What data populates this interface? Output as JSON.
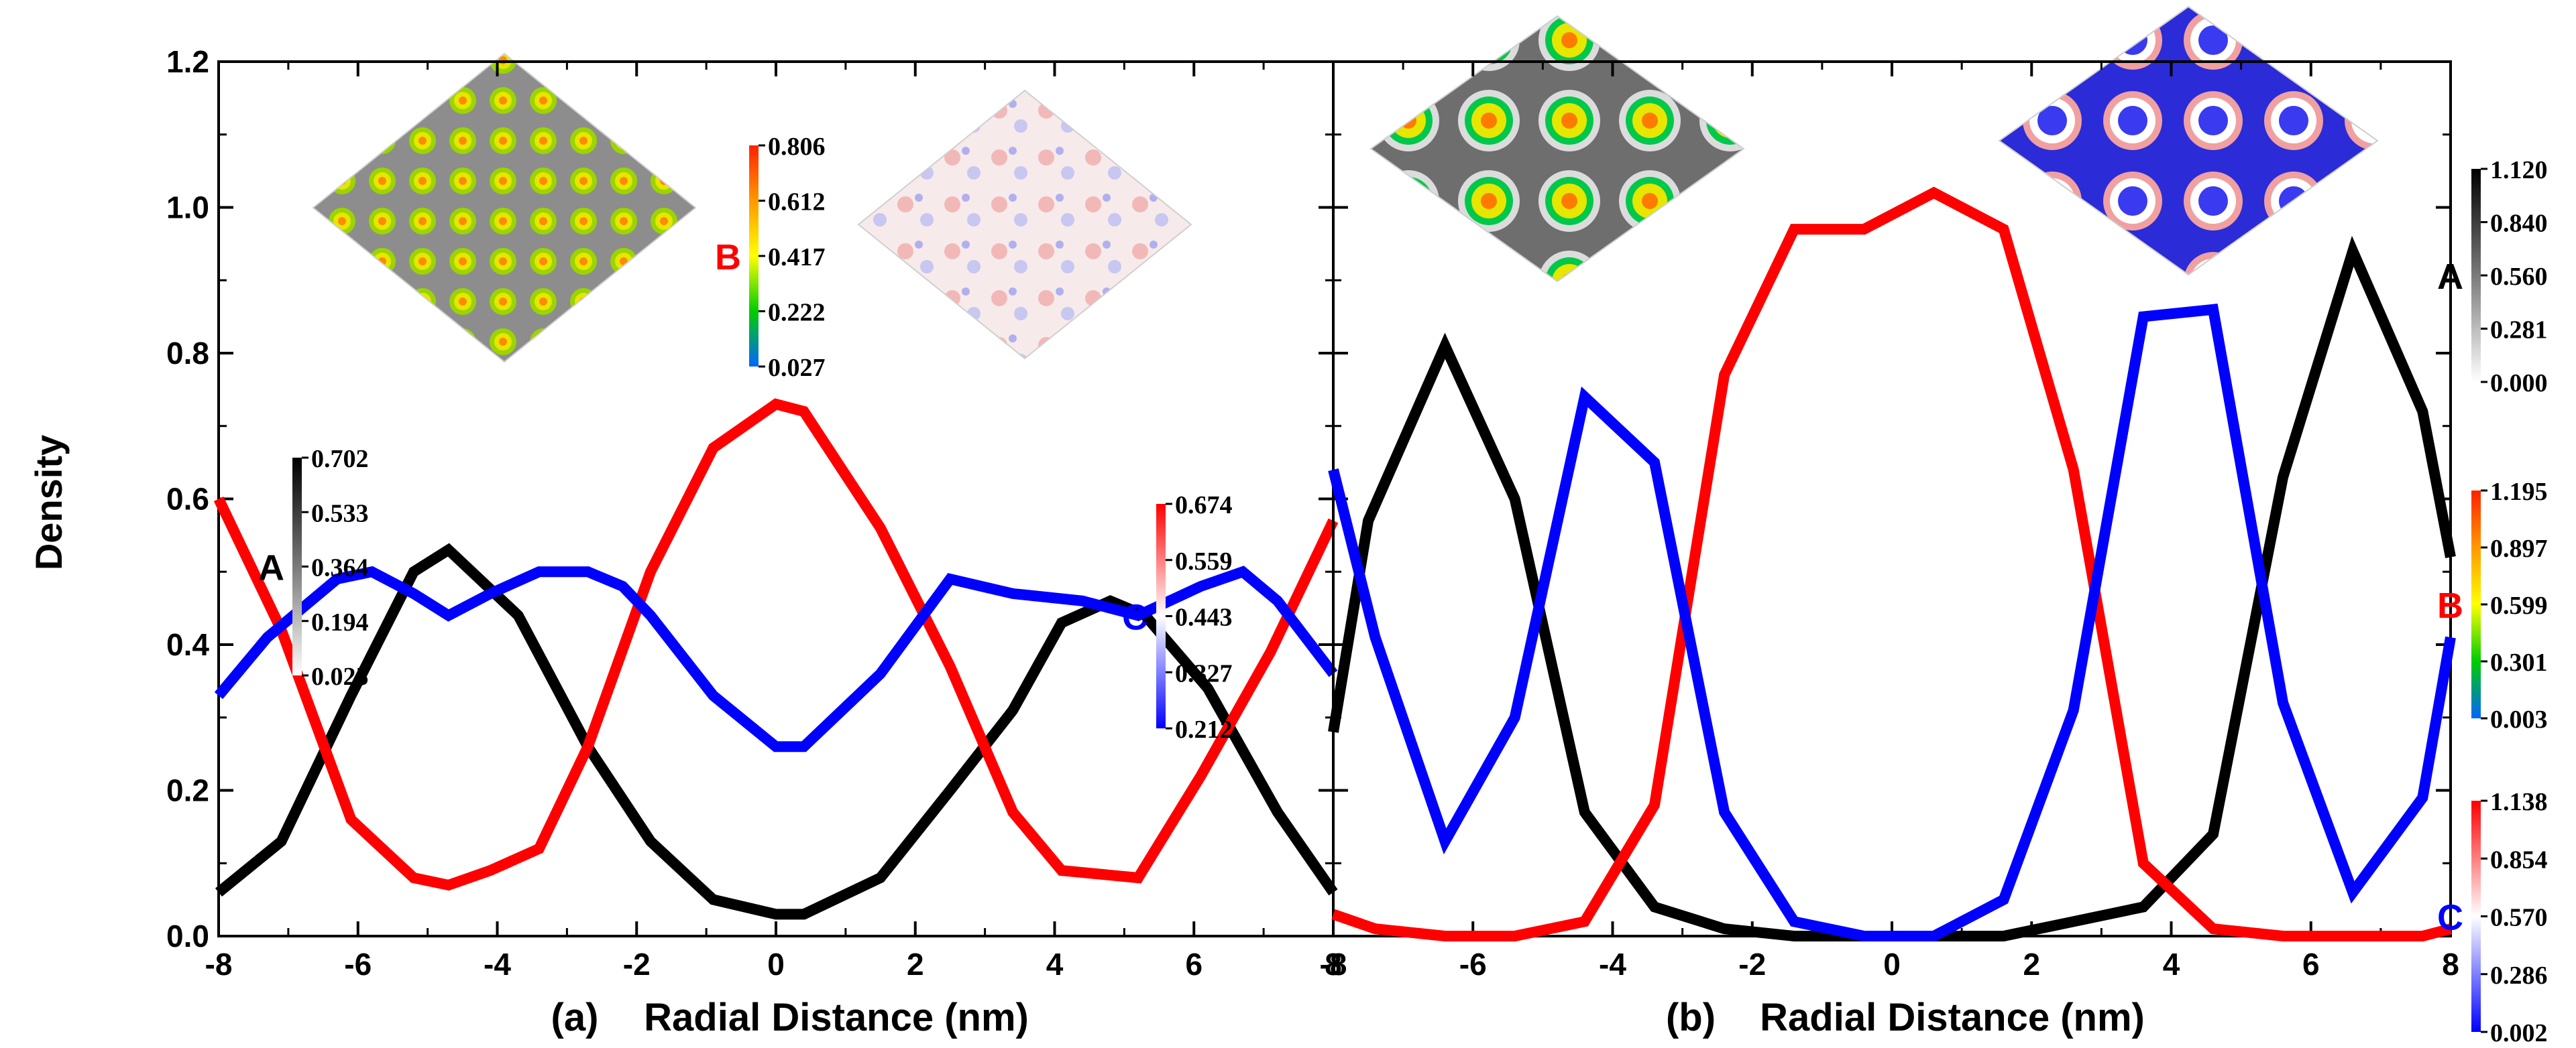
{
  "colors": {
    "A": "#000000",
    "B": "#ff0000",
    "C": "#0000ff",
    "axis": "#000000"
  },
  "shared_ylabel": "Density",
  "chart_data": [
    {
      "id": "a",
      "type": "line",
      "panel_label": "(a)",
      "xlabel": "Radial Distance (nm)",
      "ylabel": "Density",
      "xlim": [
        -8,
        8
      ],
      "ylim": [
        0,
        1.2
      ],
      "xticks": [
        -8,
        -6,
        -4,
        -2,
        0,
        2,
        4,
        6,
        8
      ],
      "xtick_labels": [
        "-8",
        "-6",
        "-4",
        "-2",
        "0",
        "2",
        "4",
        "6",
        "8"
      ],
      "yticks": [
        0,
        0.2,
        0.4,
        0.6,
        0.8,
        1.0,
        1.2
      ],
      "ytick_labels": [
        "0.0",
        "0.2",
        "0.4",
        "0.6",
        "0.8",
        "1.0",
        "1.2"
      ],
      "grid": false,
      "series": [
        {
          "name": "A",
          "color": "#000000",
          "x": [
            -8,
            -7.1,
            -6.1,
            -5.2,
            -4.7,
            -3.7,
            -2.7,
            -1.8,
            -0.9,
            0,
            0.4,
            1.5,
            2.5,
            3.4,
            4.1,
            4.8,
            5.3,
            6.2,
            7.2,
            8
          ],
          "y": [
            0.06,
            0.13,
            0.33,
            0.5,
            0.53,
            0.44,
            0.26,
            0.13,
            0.05,
            0.03,
            0.03,
            0.08,
            0.2,
            0.31,
            0.43,
            0.46,
            0.44,
            0.34,
            0.17,
            0.06
          ]
        },
        {
          "name": "B",
          "color": "#ff0000",
          "x": [
            -8,
            -7.1,
            -6.1,
            -5.2,
            -4.7,
            -4.1,
            -3.4,
            -2.7,
            -1.8,
            -0.9,
            0,
            0.4,
            1.5,
            2.5,
            3.4,
            4.1,
            5.2,
            6.1,
            7.1,
            8
          ],
          "y": [
            0.6,
            0.42,
            0.16,
            0.08,
            0.07,
            0.09,
            0.12,
            0.26,
            0.5,
            0.67,
            0.73,
            0.72,
            0.56,
            0.37,
            0.17,
            0.09,
            0.08,
            0.22,
            0.39,
            0.57
          ]
        },
        {
          "name": "C",
          "color": "#0000ff",
          "x": [
            -8,
            -7.3,
            -6.3,
            -5.8,
            -5.2,
            -4.7,
            -4.1,
            -3.4,
            -2.7,
            -2.2,
            -1.8,
            -0.9,
            0,
            0.4,
            1.5,
            2.5,
            3.4,
            4.4,
            5.2,
            6.1,
            6.7,
            7.2,
            8
          ],
          "y": [
            0.33,
            0.41,
            0.49,
            0.5,
            0.47,
            0.44,
            0.47,
            0.5,
            0.5,
            0.48,
            0.44,
            0.33,
            0.26,
            0.26,
            0.36,
            0.49,
            0.47,
            0.46,
            0.44,
            0.48,
            0.5,
            0.46,
            0.36
          ]
        }
      ],
      "colorbars": [
        {
          "label": "A",
          "ticks": [
            "0.702",
            "0.533",
            "0.364",
            "0.194",
            "0.025"
          ],
          "colors": [
            "#000000",
            "#7a7a7a",
            "#ffffff"
          ]
        },
        {
          "label": "B",
          "ticks": [
            "0.806",
            "0.612",
            "0.417",
            "0.222",
            "0.027"
          ],
          "colors": [
            "#ff2200",
            "#ff9900",
            "#ffff00",
            "#00cc00",
            "#0066ff"
          ]
        },
        {
          "label": "C",
          "ticks": [
            "0.674",
            "0.559",
            "0.443",
            "0.327",
            "0.212"
          ],
          "colors": [
            "#ff0000",
            "#ffffff",
            "#0000ff"
          ]
        }
      ]
    },
    {
      "id": "b",
      "type": "line",
      "panel_label": "(b)",
      "xlabel": "Radial Distance (nm)",
      "ylabel": "Density",
      "xlim": [
        -8,
        8
      ],
      "ylim": [
        0,
        1.2
      ],
      "xticks": [
        -8,
        -6,
        -4,
        -2,
        0,
        2,
        4,
        6,
        8
      ],
      "xtick_labels": [
        "-8",
        "-6",
        "-4",
        "-2",
        "0",
        "2",
        "4",
        "6",
        "8"
      ],
      "yticks": [
        0,
        0.2,
        0.4,
        0.6,
        0.8,
        1.0,
        1.2
      ],
      "ytick_labels": [
        "0.0",
        "0.2",
        "0.4",
        "0.6",
        "0.8",
        "1.0",
        "1.2"
      ],
      "grid": false,
      "series": [
        {
          "name": "A",
          "color": "#000000",
          "x": [
            -8,
            -7.5,
            -6.4,
            -5.4,
            -4.4,
            -3.4,
            -2.4,
            -1.4,
            -0.4,
            0.6,
            1.6,
            2.6,
            3.6,
            4.6,
            5.6,
            6.6,
            7.6,
            8
          ],
          "y": [
            0.28,
            0.57,
            0.81,
            0.6,
            0.17,
            0.04,
            0.01,
            0.0,
            0.0,
            0.0,
            0.0,
            0.02,
            0.04,
            0.14,
            0.63,
            0.94,
            0.72,
            0.52
          ]
        },
        {
          "name": "B",
          "color": "#ff0000",
          "x": [
            -8,
            -7.4,
            -6.4,
            -5.4,
            -4.4,
            -3.4,
            -2.4,
            -1.4,
            -0.4,
            0.6,
            1.6,
            2.6,
            3.6,
            4.6,
            5.6,
            6.6,
            7.6,
            8
          ],
          "y": [
            0.03,
            0.01,
            0.0,
            0.0,
            0.02,
            0.18,
            0.77,
            0.97,
            0.97,
            1.02,
            0.97,
            0.64,
            0.1,
            0.01,
            0.0,
            0.0,
            0.0,
            0.01
          ]
        },
        {
          "name": "C",
          "color": "#0000ff",
          "x": [
            -8,
            -7.4,
            -6.4,
            -5.4,
            -4.4,
            -3.4,
            -2.4,
            -1.4,
            -0.4,
            0.6,
            1.6,
            2.6,
            3.6,
            4.6,
            5.6,
            6.6,
            7.6,
            8
          ],
          "y": [
            0.64,
            0.41,
            0.13,
            0.3,
            0.74,
            0.65,
            0.17,
            0.02,
            0.0,
            0.0,
            0.05,
            0.31,
            0.85,
            0.86,
            0.32,
            0.06,
            0.19,
            0.41
          ]
        }
      ],
      "colorbars": [
        {
          "label": "A",
          "ticks": [
            "1.120",
            "0.840",
            "0.560",
            "0.281",
            "0.000"
          ],
          "colors": [
            "#000000",
            "#7a7a7a",
            "#ffffff"
          ]
        },
        {
          "label": "B",
          "ticks": [
            "1.195",
            "0.897",
            "0.599",
            "0.301",
            "0.003"
          ],
          "colors": [
            "#ff2200",
            "#ff9900",
            "#ffff00",
            "#00cc00",
            "#0066ff"
          ]
        },
        {
          "label": "C",
          "ticks": [
            "1.138",
            "0.854",
            "0.570",
            "0.286",
            "0.002"
          ],
          "colors": [
            "#ff0000",
            "#ffffff",
            "#0000ff"
          ]
        }
      ]
    }
  ]
}
